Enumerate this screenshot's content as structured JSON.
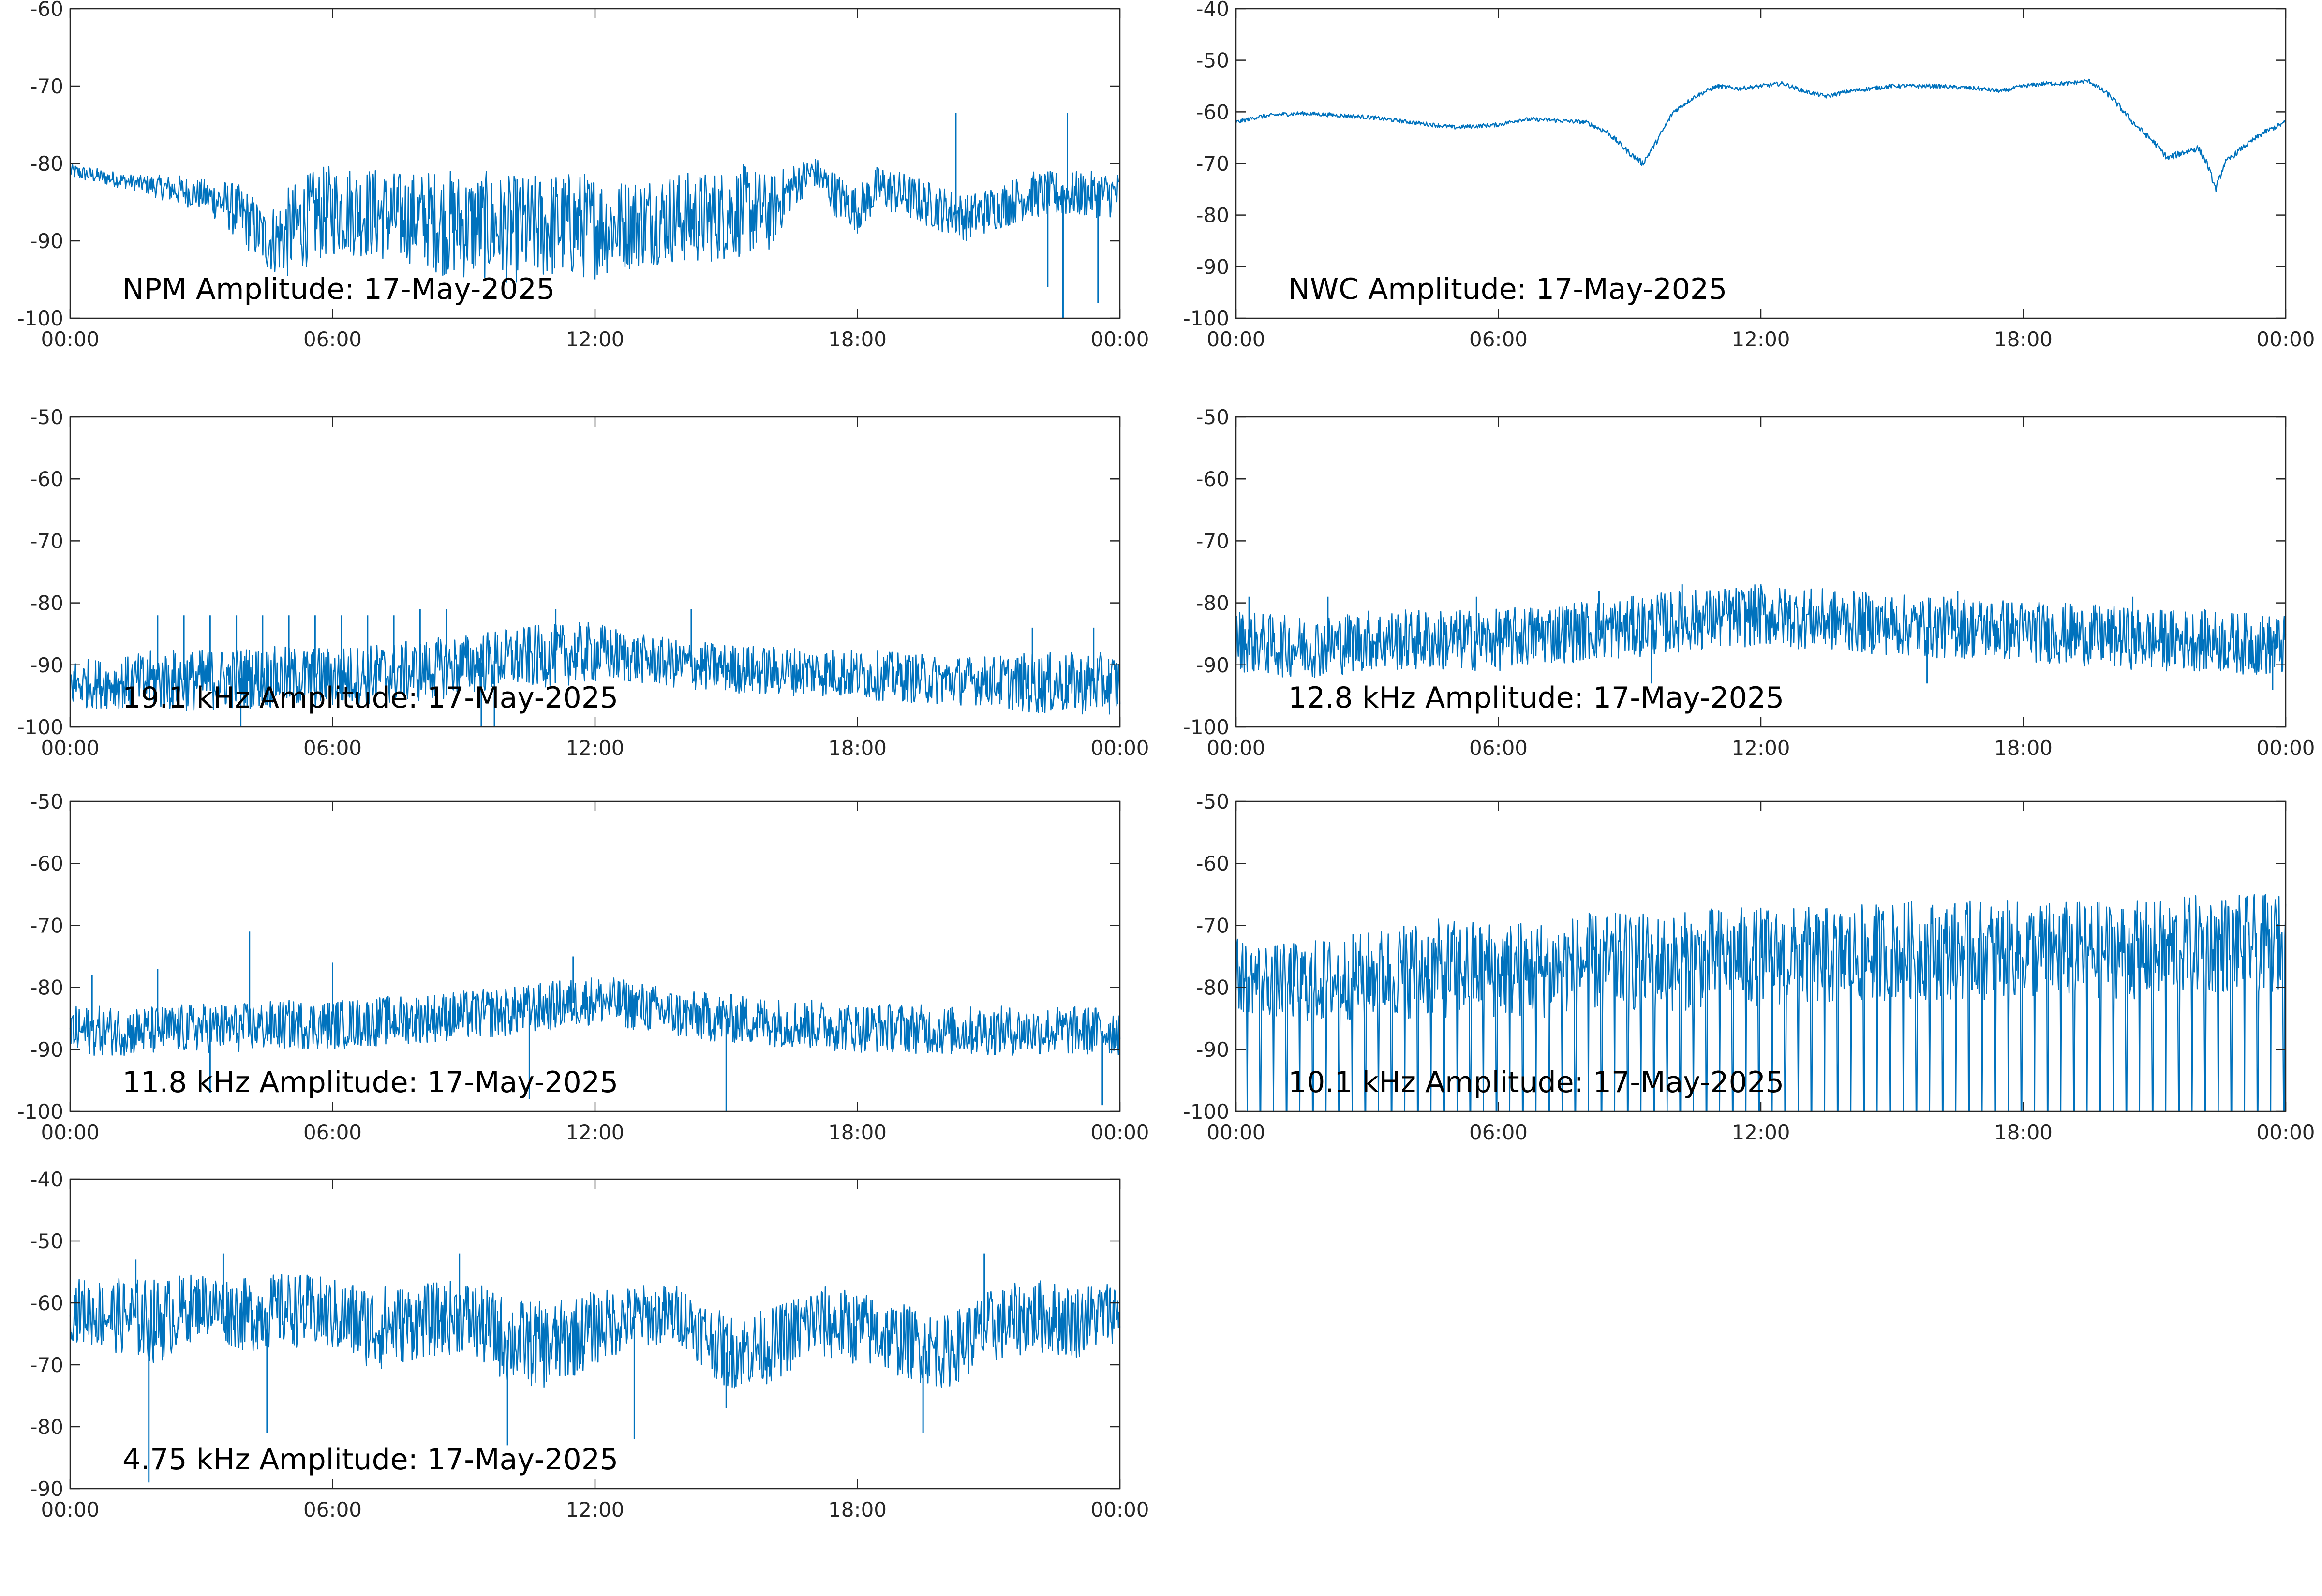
{
  "figure": {
    "date": "17-May-2025",
    "line_color": "#0072bd",
    "axis_color": "#262626",
    "background": "#ffffff"
  },
  "chart_data": [
    {
      "type": "line",
      "title": "NPM Amplitude: 17-May-2025",
      "xticks": [
        "00:00",
        "06:00",
        "12:00",
        "18:00",
        "00:00"
      ],
      "yticks": [
        "-60",
        "-70",
        "-80",
        "-90",
        "-100"
      ],
      "ylim": [
        -100,
        -60
      ],
      "x_hours": [
        0,
        0.5,
        1,
        1.5,
        2,
        2.5,
        3,
        3.5,
        4,
        4.5,
        5,
        5.5,
        6,
        6.5,
        7,
        7.5,
        8,
        8.5,
        9,
        9.5,
        10,
        10.5,
        11,
        11.5,
        12,
        12.5,
        13,
        13.5,
        14,
        14.5,
        15,
        15.5,
        16,
        16.5,
        17,
        17.5,
        18,
        18.5,
        19,
        19.5,
        20,
        20.5,
        21,
        21.5,
        22,
        22.5,
        23,
        23.5,
        24
      ],
      "y_mean": [
        -81,
        -81.5,
        -82,
        -82.5,
        -83,
        -83.5,
        -84,
        -85,
        -87,
        -90,
        -89,
        -87,
        -86,
        -86,
        -86.5,
        -87,
        -87,
        -87.5,
        -88,
        -88,
        -88.5,
        -88.5,
        -88,
        -88,
        -88,
        -88,
        -87.5,
        -87,
        -87,
        -87,
        -86.5,
        -86,
        -86.5,
        -83,
        -81,
        -84,
        -86,
        -83,
        -84,
        -85,
        -86,
        -87,
        -86,
        -85,
        -84,
        -84,
        -84,
        -84,
        -84
      ],
      "y_spread": [
        1,
        1,
        1,
        1,
        1.5,
        2,
        2,
        3,
        4,
        4,
        6,
        6,
        6,
        6,
        6,
        6,
        6,
        7,
        7,
        7,
        7,
        7,
        7,
        7,
        7,
        6,
        6,
        6,
        6,
        6,
        6,
        6,
        5,
        3,
        2,
        3,
        3,
        3,
        3,
        3,
        3,
        3,
        3,
        3,
        3,
        3,
        3,
        3,
        3
      ],
      "spikes": [
        {
          "x": 20.25,
          "y": -73.5
        },
        {
          "x": 22.35,
          "y": -96
        },
        {
          "x": 22.7,
          "y": -100
        },
        {
          "x": 22.8,
          "y": -73.5
        },
        {
          "x": 23.5,
          "y": -98
        }
      ],
      "noise": "dense"
    },
    {
      "type": "line",
      "title": "NWC Amplitude: 17-May-2025",
      "xticks": [
        "00:00",
        "06:00",
        "12:00",
        "18:00",
        "00:00"
      ],
      "yticks": [
        "-40",
        "-50",
        "-60",
        "-70",
        "-80",
        "-90",
        "-100"
      ],
      "ylim": [
        -100,
        -40
      ],
      "x_hours": [
        0,
        0.5,
        1,
        1.5,
        2,
        3,
        4,
        5,
        6,
        6.5,
        7,
        8,
        8.5,
        9,
        9.3,
        9.6,
        10,
        10.5,
        11,
        11.5,
        12,
        12.5,
        13,
        13.5,
        14,
        15,
        16,
        17,
        17.5,
        18,
        18.5,
        19,
        19.5,
        20,
        20.5,
        21,
        21.3,
        21.6,
        22,
        22.2,
        22.4,
        22.6,
        23,
        23.5,
        24
      ],
      "y_mean": [
        -62,
        -61,
        -60.5,
        -60.3,
        -60.5,
        -61,
        -62,
        -63,
        -62.5,
        -61.5,
        -61.5,
        -62,
        -64,
        -68,
        -70,
        -66,
        -60,
        -57,
        -55,
        -55.5,
        -55,
        -54.5,
        -56,
        -57,
        -56,
        -55,
        -55,
        -55.5,
        -56,
        -55,
        -54.5,
        -54.5,
        -54,
        -57,
        -62,
        -66,
        -69,
        -68,
        -67,
        -70,
        -75,
        -70,
        -67,
        -64,
        -62
      ],
      "y_spread": [
        0.5,
        0.5,
        0.5,
        0.5,
        0.5,
        0.5,
        0.5,
        0.5,
        0.5,
        0.5,
        0.5,
        0.5,
        0.7,
        0.7,
        0.8,
        0.7,
        0.6,
        0.5,
        0.5,
        0.5,
        0.5,
        0.5,
        0.5,
        0.5,
        0.5,
        0.5,
        0.5,
        0.5,
        0.5,
        0.5,
        0.5,
        0.5,
        0.5,
        0.7,
        0.7,
        0.7,
        0.8,
        0.8,
        0.8,
        0.8,
        0.8,
        0.8,
        0.6,
        0.6,
        0.6
      ],
      "spikes": [],
      "noise": "smooth"
    },
    {
      "type": "line",
      "title": "19.1 kHz Amplitude: 17-May-2025",
      "xticks": [
        "00:00",
        "06:00",
        "12:00",
        "18:00",
        "00:00"
      ],
      "yticks": [
        "-50",
        "-60",
        "-70",
        "-80",
        "-90",
        "-100"
      ],
      "ylim": [
        -100,
        -50
      ],
      "x_hours": [
        0,
        1,
        2,
        3,
        4,
        5,
        6,
        7,
        8,
        9,
        10,
        11,
        12,
        13,
        14,
        15,
        16,
        17,
        18,
        19,
        20,
        21,
        22,
        23,
        24
      ],
      "y_mean": [
        -93,
        -93,
        -92.5,
        -92.5,
        -92,
        -92,
        -92,
        -91.5,
        -91,
        -90,
        -89,
        -88.5,
        -88,
        -89,
        -90,
        -90.5,
        -91,
        -91,
        -91.5,
        -92,
        -92.5,
        -92.5,
        -93,
        -93,
        -93
      ],
      "y_spread": [
        4,
        4,
        5,
        5,
        5,
        5,
        5,
        5,
        5,
        5,
        5,
        5,
        5,
        4,
        4,
        4,
        4,
        4,
        4,
        4,
        4,
        4,
        5,
        5,
        5
      ],
      "spikes": [
        {
          "x": 2.0,
          "y": -82
        },
        {
          "x": 2.6,
          "y": -82
        },
        {
          "x": 3.2,
          "y": -82
        },
        {
          "x": 3.8,
          "y": -82
        },
        {
          "x": 4.4,
          "y": -82
        },
        {
          "x": 5.0,
          "y": -82
        },
        {
          "x": 5.6,
          "y": -82
        },
        {
          "x": 6.2,
          "y": -82
        },
        {
          "x": 6.8,
          "y": -82
        },
        {
          "x": 7.4,
          "y": -82
        },
        {
          "x": 8.0,
          "y": -81
        },
        {
          "x": 8.6,
          "y": -81
        },
        {
          "x": 11.1,
          "y": -81
        },
        {
          "x": 14.2,
          "y": -81
        },
        {
          "x": 22.0,
          "y": -84
        },
        {
          "x": 23.4,
          "y": -84
        },
        {
          "x": 3.9,
          "y": -100
        },
        {
          "x": 9.4,
          "y": -100
        },
        {
          "x": 9.7,
          "y": -100
        }
      ],
      "noise": "dense"
    },
    {
      "type": "line",
      "title": "12.8 kHz Amplitude: 17-May-2025",
      "xticks": [
        "00:00",
        "06:00",
        "12:00",
        "18:00",
        "00:00"
      ],
      "yticks": [
        "-50",
        "-60",
        "-70",
        "-80",
        "-90",
        "-100"
      ],
      "ylim": [
        -100,
        -50
      ],
      "x_hours": [
        0,
        1,
        2,
        3,
        4,
        5,
        6,
        7,
        8,
        9,
        10,
        11,
        12,
        13,
        14,
        15,
        16,
        17,
        18,
        19,
        20,
        21,
        22,
        23,
        24
      ],
      "y_mean": [
        -86,
        -87,
        -87,
        -86,
        -86,
        -86,
        -86,
        -85,
        -84.5,
        -84,
        -83,
        -82.5,
        -82,
        -82.5,
        -83,
        -83.5,
        -84,
        -84,
        -84.5,
        -85,
        -85.5,
        -86,
        -86,
        -86.5,
        -87
      ],
      "y_spread": [
        5,
        5,
        5,
        5,
        5,
        5,
        5,
        5,
        5,
        5,
        5,
        5,
        5,
        5,
        5,
        5,
        5,
        5,
        5,
        5,
        5,
        5,
        5,
        5,
        5
      ],
      "spikes": [
        {
          "x": 0.3,
          "y": -79
        },
        {
          "x": 2.1,
          "y": -79
        },
        {
          "x": 5.5,
          "y": -79
        },
        {
          "x": 8.3,
          "y": -78
        },
        {
          "x": 10.2,
          "y": -77
        },
        {
          "x": 12.0,
          "y": -77
        },
        {
          "x": 16.5,
          "y": -78
        },
        {
          "x": 20.5,
          "y": -79
        },
        {
          "x": 9.5,
          "y": -93
        },
        {
          "x": 15.8,
          "y": -93
        },
        {
          "x": 23.7,
          "y": -94
        }
      ],
      "noise": "dense"
    },
    {
      "type": "line",
      "title": "11.8 kHz Amplitude: 17-May-2025",
      "xticks": [
        "00:00",
        "06:00",
        "12:00",
        "18:00",
        "00:00"
      ],
      "yticks": [
        "-50",
        "-60",
        "-70",
        "-80",
        "-90",
        "-100"
      ],
      "ylim": [
        -100,
        -50
      ],
      "x_hours": [
        0,
        1,
        2,
        3,
        4,
        5,
        6,
        7,
        8,
        9,
        10,
        11,
        12,
        13,
        14,
        15,
        16,
        17,
        18,
        19,
        20,
        21,
        22,
        23,
        24
      ],
      "y_mean": [
        -87,
        -87,
        -87,
        -86.5,
        -86.5,
        -86,
        -86,
        -85.5,
        -85,
        -84.5,
        -84,
        -83,
        -82,
        -83,
        -84.5,
        -85,
        -85.5,
        -86,
        -86.5,
        -86.5,
        -87,
        -87,
        -87,
        -87,
        -87
      ],
      "y_spread": [
        4,
        4,
        4,
        4,
        4,
        4,
        4,
        4,
        4,
        4,
        4,
        4,
        4,
        4,
        4,
        4,
        4,
        4,
        4,
        4,
        4,
        4,
        4,
        4,
        4
      ],
      "spikes": [
        {
          "x": 4.1,
          "y": -71
        },
        {
          "x": 0.5,
          "y": -78
        },
        {
          "x": 2.0,
          "y": -77
        },
        {
          "x": 6.0,
          "y": -76
        },
        {
          "x": 11.5,
          "y": -75
        },
        {
          "x": 15.0,
          "y": -100
        },
        {
          "x": 10.5,
          "y": -98
        },
        {
          "x": 23.6,
          "y": -99
        },
        {
          "x": 3.2,
          "y": -97
        }
      ],
      "noise": "dense"
    },
    {
      "type": "line",
      "title": "10.1 kHz Amplitude: 17-May-2025",
      "xticks": [
        "00:00",
        "06:00",
        "12:00",
        "18:00",
        "00:00"
      ],
      "yticks": [
        "-50",
        "-60",
        "-70",
        "-80",
        "-90",
        "-100"
      ],
      "ylim": [
        -100,
        -50
      ],
      "x_hours": [
        0,
        1,
        2,
        3,
        4,
        5,
        6,
        7,
        8,
        9,
        10,
        11,
        12,
        13,
        14,
        15,
        16,
        17,
        18,
        19,
        20,
        21,
        22,
        23,
        24
      ],
      "y_mean": [
        -78,
        -79,
        -79,
        -78,
        -77,
        -77,
        -77,
        -77,
        -76,
        -76,
        -76,
        -75,
        -75,
        -75,
        -75,
        -74,
        -74,
        -74,
        -74,
        -74,
        -74,
        -74,
        -73,
        -73,
        -73
      ],
      "y_spread": [
        6,
        6,
        7,
        7,
        8,
        8,
        8,
        8,
        8,
        8,
        8,
        8,
        8,
        8,
        8,
        8,
        8,
        8,
        8,
        8,
        8,
        8,
        8,
        8,
        8
      ],
      "drop_period_hours": 0.3,
      "drop_floor": -100,
      "spikes": [],
      "noise": "dropouts"
    },
    {
      "type": "line",
      "title": "4.75 kHz Amplitude: 17-May-2025",
      "xticks": [
        "00:00",
        "06:00",
        "12:00",
        "18:00",
        "00:00"
      ],
      "yticks": [
        "-40",
        "-50",
        "-60",
        "-70",
        "-80",
        "-90"
      ],
      "ylim": [
        -90,
        -40
      ],
      "x_hours": [
        0,
        1,
        2,
        3,
        4,
        5,
        6,
        7,
        8,
        9,
        10,
        11,
        12,
        13,
        14,
        15,
        16,
        17,
        18,
        19,
        20,
        21,
        22,
        23,
        24
      ],
      "y_mean": [
        -61,
        -62,
        -63,
        -60,
        -62,
        -61,
        -62,
        -64,
        -63,
        -62,
        -66,
        -67,
        -64,
        -62,
        -62,
        -68,
        -67,
        -63,
        -64,
        -66,
        -68,
        -64,
        -62,
        -63,
        -61
      ],
      "y_spread": [
        5,
        6,
        7,
        5,
        6,
        6,
        6,
        7,
        6,
        6,
        7,
        7,
        6,
        5,
        5,
        6,
        6,
        6,
        6,
        6,
        6,
        6,
        6,
        6,
        5
      ],
      "spikes": [
        {
          "x": 1.8,
          "y": -89
        },
        {
          "x": 1.5,
          "y": -53
        },
        {
          "x": 3.5,
          "y": -52
        },
        {
          "x": 8.9,
          "y": -52
        },
        {
          "x": 10.0,
          "y": -83
        },
        {
          "x": 12.9,
          "y": -82
        },
        {
          "x": 15.0,
          "y": -77
        },
        {
          "x": 20.9,
          "y": -52
        },
        {
          "x": 19.5,
          "y": -81
        },
        {
          "x": 4.5,
          "y": -81
        }
      ],
      "noise": "dense"
    }
  ]
}
